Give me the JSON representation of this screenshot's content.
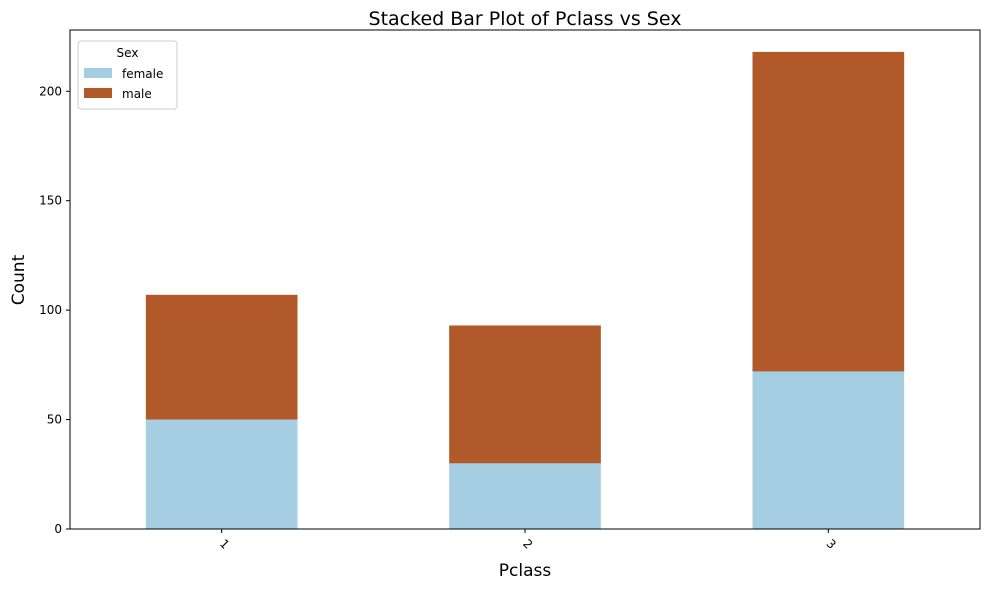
{
  "chart_data": {
    "type": "bar",
    "stacked": true,
    "title": "Stacked Bar Plot of Pclass vs Sex",
    "xlabel": "Pclass",
    "ylabel": "Count",
    "categories": [
      "1",
      "2",
      "3"
    ],
    "series": [
      {
        "name": "female",
        "values": [
          50,
          30,
          72
        ],
        "color": "#a6cee3"
      },
      {
        "name": "male",
        "values": [
          57,
          63,
          146
        ],
        "color": "#b15928"
      }
    ],
    "ylim": [
      0,
      228
    ],
    "yticks": [
      0,
      50,
      100,
      150,
      200
    ],
    "grid": false,
    "legend": {
      "title": "Sex",
      "placement": "top-left"
    }
  }
}
